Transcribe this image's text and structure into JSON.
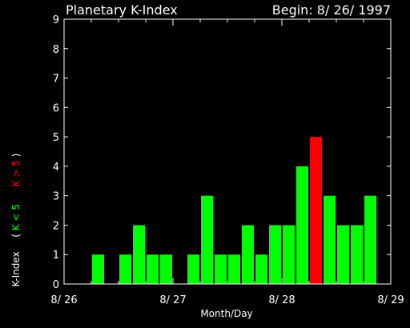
{
  "chart_data": {
    "type": "bar",
    "title": "Planetary K-Index",
    "subtitle": "Begin: 8/ 26/ 1997",
    "xlabel": "Month/Day",
    "ylabel": "K-Index",
    "legend": {
      "low": "K < 5",
      "high": "K > 5"
    },
    "ylim": [
      0,
      9
    ],
    "y_ticks": [
      "0",
      "1",
      "2",
      "3",
      "4",
      "5",
      "6",
      "7",
      "8",
      "9"
    ],
    "x_ticks": [
      "8/ 26",
      "8/ 27",
      "8/ 28",
      "8/ 29"
    ],
    "bars_per_day": 8,
    "threshold": 5,
    "colors": {
      "low": "#00ff00",
      "high": "#ff0000",
      "axis": "#ffffff",
      "background": "#000000"
    },
    "values": [
      0,
      0,
      1,
      0,
      1,
      2,
      1,
      1,
      0,
      1,
      3,
      1,
      1,
      2,
      1,
      2,
      2,
      4,
      5,
      3,
      2,
      2,
      3,
      0
    ]
  }
}
